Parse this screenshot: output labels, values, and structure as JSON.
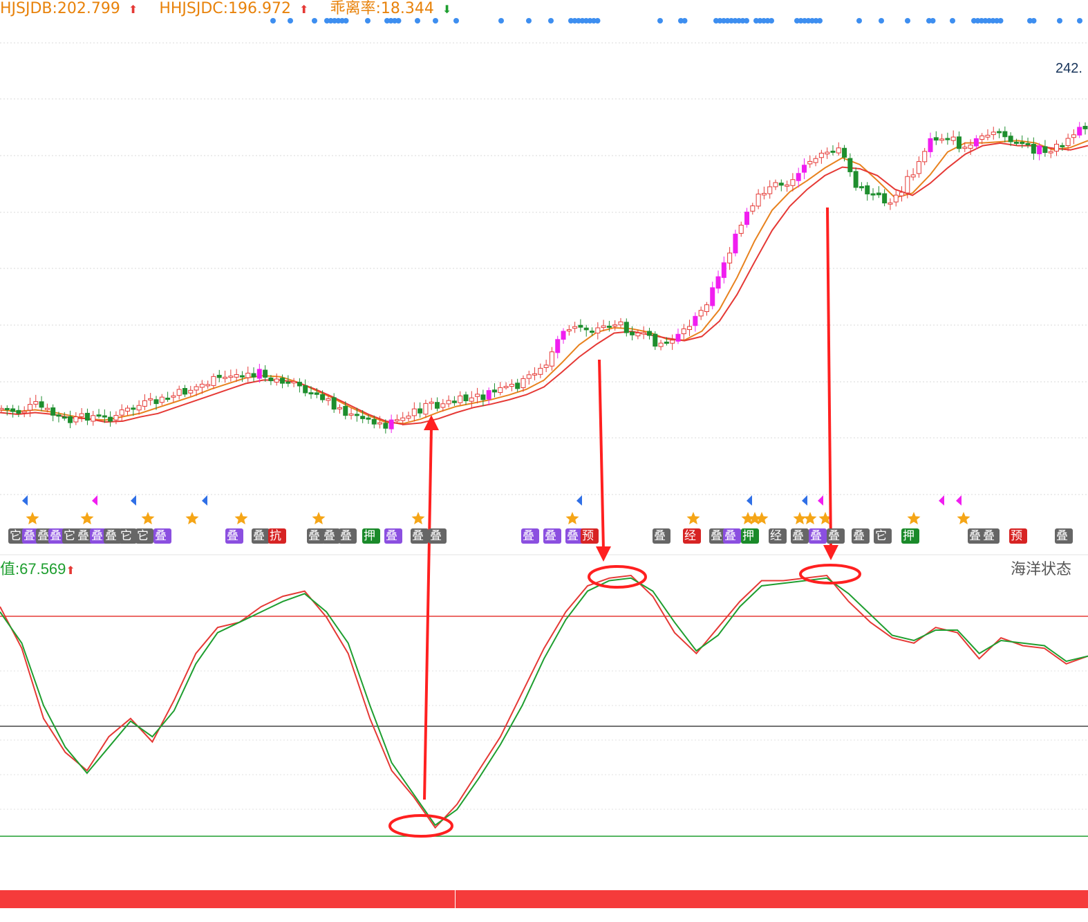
{
  "header": {
    "items": [
      {
        "text": "HJSJDB:202.799",
        "arrow": "⬆",
        "dir": "up"
      },
      {
        "text": "HHJSJDC:196.972",
        "arrow": "⬆",
        "dir": "up"
      },
      {
        "text": "乖离率:18.344",
        "arrow": "⬇",
        "dir": "down"
      }
    ]
  },
  "price_label": "242.",
  "oscillator": {
    "title": "值:67.569",
    "title_arrow": "⬆",
    "name": "海洋状态"
  },
  "colors": {
    "up_candle": "#e53935",
    "down_candle": "#1e8e2e",
    "strong_up_candle": "#f01ef0",
    "ma_fast": "#e8821e",
    "ma_slow": "#e53935",
    "osc_red": "#e53935",
    "osc_green": "#1e9e2f",
    "annotation": "#ff2020",
    "star": "#f5a516",
    "dot": "#3d8ef0"
  },
  "chart_data": {
    "type": "candlestick",
    "title": "",
    "xlabel": "",
    "ylabel": "",
    "ylim": [
      null,
      242
    ],
    "grid": true,
    "note": "Closing price trend (approximate, relative), read from the candle body path.",
    "price_trend": [
      160,
      159,
      161,
      158,
      156,
      158,
      157,
      159,
      161,
      162,
      164,
      166,
      168,
      169,
      171,
      170,
      168,
      166,
      163,
      161,
      158,
      156,
      155,
      157,
      160,
      161,
      162,
      163,
      164,
      166,
      168,
      172,
      181,
      184,
      183,
      185,
      183,
      180,
      179,
      182,
      188,
      198,
      210,
      220,
      225,
      226,
      230,
      236,
      235,
      224,
      222,
      220,
      228,
      238,
      240,
      236,
      238,
      241,
      237,
      236,
      235,
      239,
      242
    ],
    "series": [
      {
        "kind": "oscillator-red",
        "values": [
          88,
          72,
          45,
          32,
          25,
          38,
          45,
          36,
          52,
          70,
          80,
          82,
          88,
          92,
          94,
          84,
          70,
          45,
          25,
          15,
          3,
          12,
          25,
          38,
          55,
          72,
          86,
          96,
          99,
          100,
          92,
          78,
          70,
          80,
          90,
          98,
          98,
          99,
          100,
          90,
          82,
          76,
          74,
          80,
          78,
          68,
          76,
          73,
          72,
          66,
          69
        ]
      },
      {
        "kind": "oscillator-green",
        "values": [
          86,
          74,
          50,
          34,
          24,
          34,
          44,
          38,
          48,
          66,
          78,
          82,
          86,
          90,
          93,
          86,
          74,
          50,
          28,
          16,
          4,
          10,
          22,
          35,
          50,
          68,
          83,
          94,
          98,
          99,
          94,
          82,
          71,
          77,
          88,
          96,
          97,
          98,
          99,
          93,
          85,
          77,
          75,
          79,
          79,
          70,
          75,
          74,
          73,
          67,
          69
        ]
      }
    ],
    "reference_lines": [
      {
        "kind": "upper",
        "color": "#e53935"
      },
      {
        "kind": "middle",
        "color": "#444444"
      },
      {
        "kind": "lower",
        "color": "#1e9e2f"
      }
    ],
    "annotations": [
      {
        "shape": "ellipse",
        "marks": "oscillator trough"
      },
      {
        "shape": "ellipse",
        "marks": "oscillator peak"
      },
      {
        "shape": "ellipse",
        "marks": "oscillator peak"
      }
    ]
  },
  "tags": [
    {
      "text": "它",
      "color": "#666666"
    },
    {
      "text": "叠",
      "color": "#8b4fe0"
    },
    {
      "text": "叠",
      "color": "#666666"
    },
    {
      "text": "叠",
      "color": "#8b4fe0"
    },
    {
      "text": "它",
      "color": "#666666"
    },
    {
      "text": "叠",
      "color": "#666666"
    },
    {
      "text": "叠",
      "color": "#8b4fe0"
    },
    {
      "text": "叠",
      "color": "#666666"
    },
    {
      "text": "它",
      "color": "#666666"
    },
    {
      "text": "它",
      "color": "#666666"
    },
    {
      "text": "叠",
      "color": "#8b4fe0"
    },
    {
      "text": "叠",
      "color": "#8b4fe0"
    },
    {
      "text": "叠",
      "color": "#666666"
    },
    {
      "text": "抗",
      "color": "#d72323"
    },
    {
      "text": "叠",
      "color": "#666666"
    },
    {
      "text": "叠",
      "color": "#666666"
    },
    {
      "text": "叠",
      "color": "#666666"
    },
    {
      "text": "押",
      "color": "#1a8a2a"
    },
    {
      "text": "叠",
      "color": "#8b4fe0"
    },
    {
      "text": "叠",
      "color": "#666666"
    },
    {
      "text": "叠",
      "color": "#666666"
    },
    {
      "text": "叠",
      "color": "#8b4fe0"
    },
    {
      "text": "叠",
      "color": "#8b4fe0"
    },
    {
      "text": "叠",
      "color": "#8b4fe0"
    },
    {
      "text": "预",
      "color": "#d72323"
    },
    {
      "text": "叠",
      "color": "#666666"
    },
    {
      "text": "经",
      "color": "#d72323"
    },
    {
      "text": "叠",
      "color": "#666666"
    },
    {
      "text": "叠",
      "color": "#8b4fe0"
    },
    {
      "text": "押",
      "color": "#1a8a2a"
    },
    {
      "text": "经",
      "color": "#666666"
    },
    {
      "text": "叠",
      "color": "#666666"
    },
    {
      "text": "叠",
      "color": "#8b4fe0"
    },
    {
      "text": "叠",
      "color": "#666666"
    },
    {
      "text": "叠",
      "color": "#666666"
    },
    {
      "text": "它",
      "color": "#666666"
    },
    {
      "text": "押",
      "color": "#1a8a2a"
    },
    {
      "text": "叠",
      "color": "#666666"
    },
    {
      "text": "叠",
      "color": "#666666"
    },
    {
      "text": "预",
      "color": "#d72323"
    },
    {
      "text": "叠",
      "color": "#666666"
    }
  ]
}
